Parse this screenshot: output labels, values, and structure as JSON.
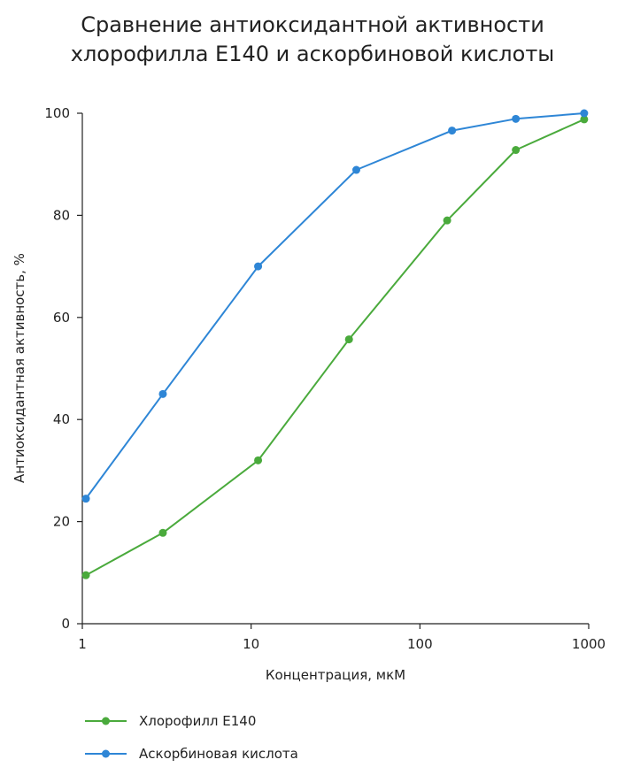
{
  "chart_data": {
    "type": "line",
    "title_lines": [
      "Сравнение антиоксидантной активности",
      "хлорофилла Е140 и аскорбиновой кислоты"
    ],
    "xlabel": "Концентрация, мкМ",
    "ylabel": "Антиоксидантная активность, %",
    "x_scale": "log",
    "xlim": [
      1,
      1000
    ],
    "ylim": [
      0,
      100
    ],
    "x_ticks": [
      1,
      10,
      100,
      1000
    ],
    "x_tick_labels": [
      "1",
      "10",
      "100",
      "1000"
    ],
    "y_ticks": [
      0,
      20,
      40,
      60,
      80,
      100
    ],
    "y_tick_labels": [
      "0",
      "20",
      "40",
      "60",
      "80",
      "100"
    ],
    "grid": false,
    "legend_position": "bottom-left",
    "series": [
      {
        "name": "Хлорофилл Е140",
        "color": "#4aaa3c",
        "x": [
          1.05,
          3,
          11,
          38,
          145,
          370,
          940
        ],
        "y": [
          9.5,
          17.8,
          32,
          55.7,
          79,
          92.8,
          98.8
        ]
      },
      {
        "name": "Аскорбиновая кислота",
        "color": "#2e86d6",
        "x": [
          1.05,
          3,
          11,
          42,
          155,
          370,
          940
        ],
        "y": [
          24.5,
          45,
          70,
          88.9,
          96.6,
          98.9,
          100
        ]
      }
    ]
  }
}
